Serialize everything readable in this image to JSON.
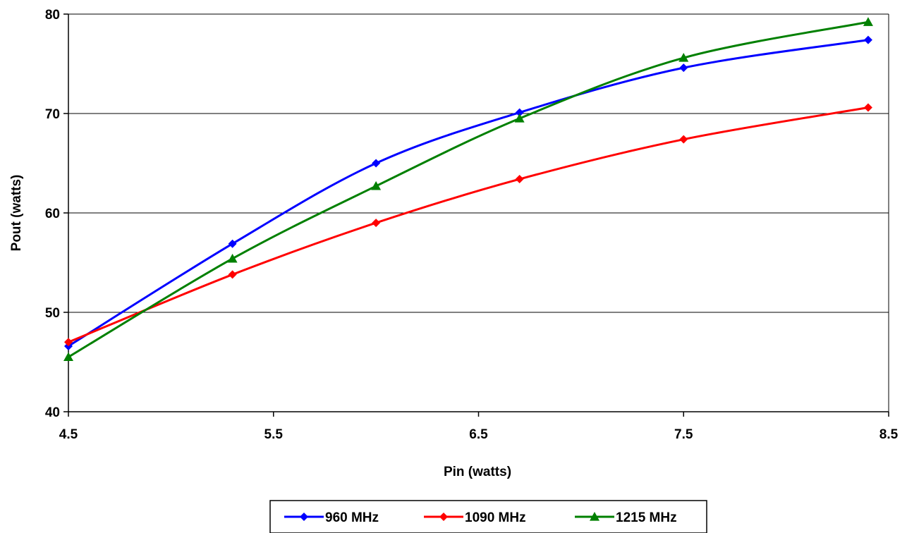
{
  "chart_data": {
    "type": "line",
    "xlabel": "Pin (watts)",
    "ylabel": "Pout (watts)",
    "xlim": [
      4.5,
      8.5
    ],
    "ylim": [
      40,
      80
    ],
    "x_ticks": [
      "4.5",
      "5.5",
      "6.5",
      "7.5",
      "8.5"
    ],
    "y_ticks": [
      "40",
      "50",
      "60",
      "70",
      "80"
    ],
    "grid": "horizontal",
    "legend_position": "bottom",
    "series": [
      {
        "name": "960 MHz",
        "color": "#0000FF",
        "marker": "diamond",
        "x": [
          4.5,
          5.3,
          6.0,
          6.7,
          7.5,
          8.4
        ],
        "y": [
          46.6,
          56.9,
          65.0,
          70.1,
          74.6,
          77.4
        ]
      },
      {
        "name": "1090 MHz",
        "color": "#FF0000",
        "marker": "diamond",
        "x": [
          4.5,
          5.3,
          6.0,
          6.7,
          7.5,
          8.4
        ],
        "y": [
          47.0,
          53.8,
          59.0,
          63.4,
          67.4,
          70.6
        ]
      },
      {
        "name": "1215 MHz",
        "color": "#008000",
        "marker": "triangle",
        "x": [
          4.5,
          5.3,
          6.0,
          6.7,
          7.5,
          8.4
        ],
        "y": [
          45.5,
          55.4,
          62.7,
          69.5,
          75.6,
          79.2
        ]
      }
    ]
  }
}
